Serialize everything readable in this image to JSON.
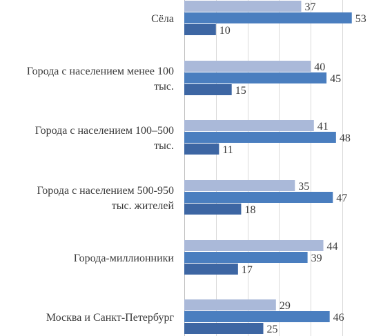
{
  "chart_data": {
    "type": "bar",
    "orientation": "horizontal",
    "categories": [
      [
        "Сёла"
      ],
      [
        "Города с населением менее 100",
        "тыс."
      ],
      [
        "Города с населением 100–500",
        "тыс."
      ],
      [
        "Города с населением 500-950",
        "тыс. жителей"
      ],
      [
        "Города-миллионники"
      ],
      [
        "Москва и Санкт-Петербург"
      ]
    ],
    "series": [
      {
        "values": [
          37,
          40,
          41,
          35,
          44,
          29
        ],
        "color": "#aab9d9"
      },
      {
        "values": [
          53,
          45,
          48,
          47,
          39,
          46
        ],
        "color": "#4a7ebf"
      },
      {
        "values": [
          10,
          15,
          11,
          18,
          17,
          25
        ],
        "color": "#3d66a3"
      }
    ],
    "xlim": [
      0,
      60
    ],
    "grid": true,
    "title": "",
    "xlabel": "",
    "ylabel": ""
  }
}
